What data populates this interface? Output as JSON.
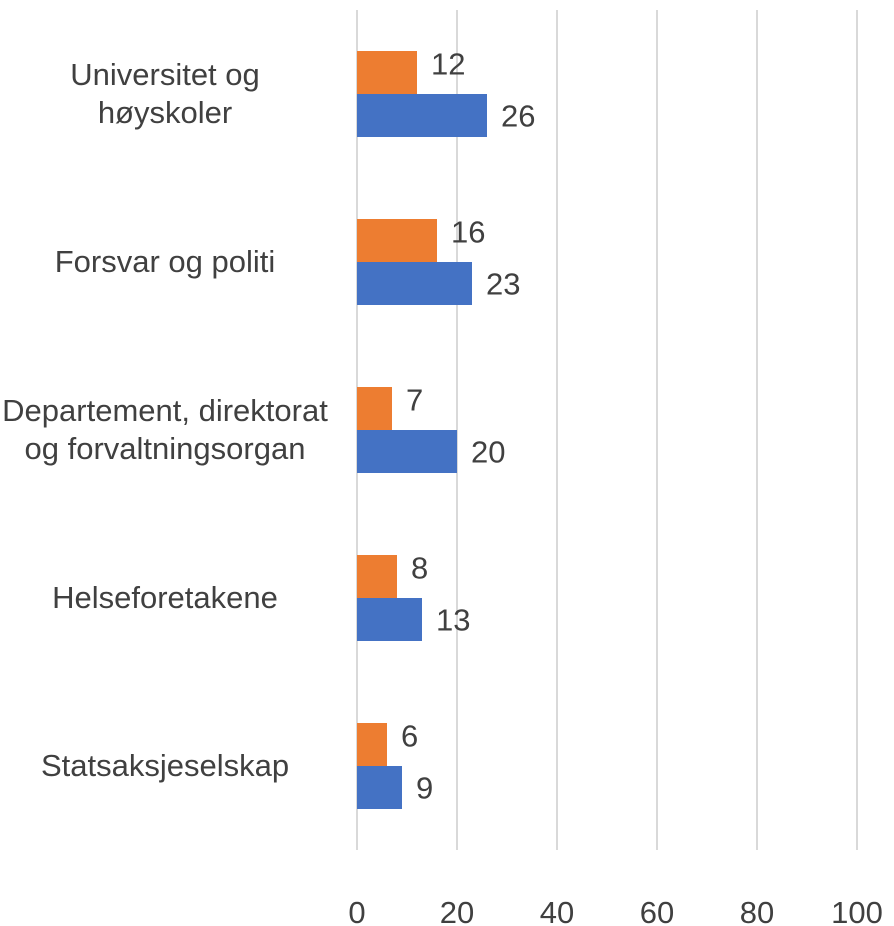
{
  "chart_data": {
    "type": "bar",
    "orientation": "horizontal",
    "categories": [
      "Universitet og høyskoler",
      "Forsvar og politi",
      "Departement, direktorat og forvaltningsorgan",
      "Helseforetakene",
      "Statsaksjeselskap"
    ],
    "series": [
      {
        "color": "#4472c4",
        "values": [
          26,
          23,
          20,
          13,
          9
        ]
      },
      {
        "color": "#ed7d31",
        "values": [
          12,
          16,
          7,
          8,
          6
        ]
      }
    ],
    "xlim": [
      0,
      100
    ],
    "xticks": [
      0,
      20,
      40,
      60,
      80,
      100
    ],
    "grid": true
  }
}
